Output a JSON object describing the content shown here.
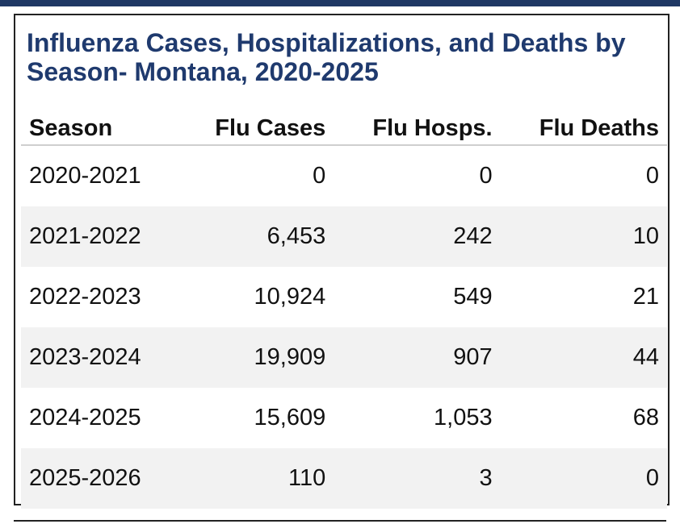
{
  "title": "Influenza Cases, Hospitalizations, and Deaths by Season- Montana, 2020-2025",
  "columns": [
    "Season",
    "Flu Cases",
    "Flu Hosps.",
    "Flu Deaths"
  ],
  "rows": [
    {
      "season": "2020-2021",
      "cases": "0",
      "hosps": "0",
      "deaths": "0"
    },
    {
      "season": "2021-2022",
      "cases": "6,453",
      "hosps": "242",
      "deaths": "10"
    },
    {
      "season": "2022-2023",
      "cases": "10,924",
      "hosps": "549",
      "deaths": "21"
    },
    {
      "season": "2023-2024",
      "cases": "19,909",
      "hosps": "907",
      "deaths": "44"
    },
    {
      "season": "2024-2025",
      "cases": "15,609",
      "hosps": "1,053",
      "deaths": "68"
    },
    {
      "season": "2025-2026",
      "cases": "110",
      "hosps": "3",
      "deaths": "0"
    }
  ],
  "colors": {
    "title": "#1f3a6e",
    "top_bar": "#1f3864",
    "row_alt": "#f2f2f2"
  }
}
